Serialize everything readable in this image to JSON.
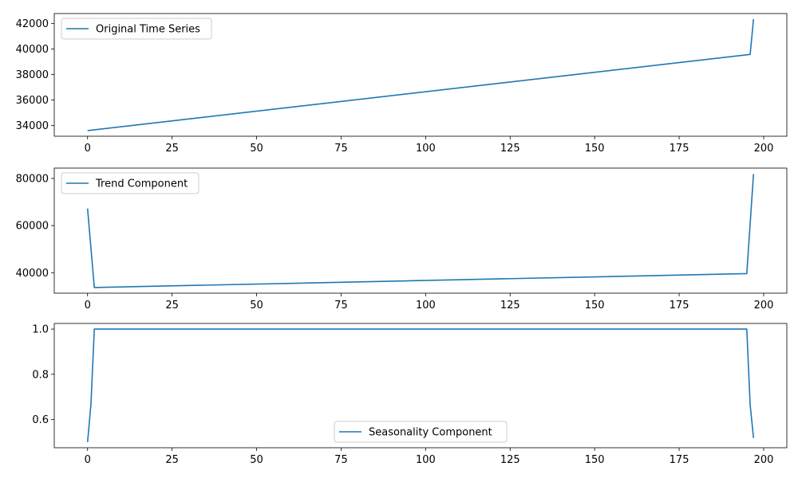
{
  "chart_data": [
    {
      "type": "line",
      "title": "",
      "xlabel": "",
      "ylabel": "",
      "xlim": [
        -9.85,
        206.85
      ],
      "ylim": [
        33160,
        42790
      ],
      "x_ticks": [
        0,
        25,
        50,
        75,
        100,
        125,
        150,
        175,
        200
      ],
      "x_tick_labels": [
        "0",
        "25",
        "50",
        "75",
        "100",
        "125",
        "150",
        "175",
        "200"
      ],
      "y_ticks": [
        34000,
        36000,
        38000,
        40000,
        42000
      ],
      "y_tick_labels": [
        "34000",
        "36000",
        "38000",
        "40000",
        "42000"
      ],
      "grid": false,
      "legend_position": "upper-left",
      "color": "#1f77b4",
      "series": [
        {
          "name": "Original Time Series",
          "x": [
            0,
            196,
            197
          ],
          "y": [
            33600,
            39580,
            42350
          ]
        }
      ]
    },
    {
      "type": "line",
      "title": "",
      "xlabel": "",
      "ylabel": "",
      "xlim": [
        -9.85,
        206.85
      ],
      "ylim": [
        31300,
        84400
      ],
      "x_ticks": [
        0,
        25,
        50,
        75,
        100,
        125,
        150,
        175,
        200
      ],
      "x_tick_labels": [
        "0",
        "25",
        "50",
        "75",
        "100",
        "125",
        "150",
        "175",
        "200"
      ],
      "y_ticks": [
        40000,
        60000,
        80000
      ],
      "y_tick_labels": [
        "40000",
        "60000",
        "80000"
      ],
      "grid": false,
      "legend_position": "upper-left",
      "color": "#1f77b4",
      "series": [
        {
          "name": "Trend Component",
          "x": [
            0,
            2,
            195,
            197
          ],
          "y": [
            67200,
            33700,
            39600,
            81900
          ]
        }
      ]
    },
    {
      "type": "line",
      "title": "",
      "xlabel": "",
      "ylabel": "",
      "xlim": [
        -9.85,
        206.85
      ],
      "ylim": [
        0.475,
        1.025
      ],
      "x_ticks": [
        0,
        25,
        50,
        75,
        100,
        125,
        150,
        175,
        200
      ],
      "x_tick_labels": [
        "0",
        "25",
        "50",
        "75",
        "100",
        "125",
        "150",
        "175",
        "200"
      ],
      "y_ticks": [
        0.6,
        0.8,
        1.0
      ],
      "y_tick_labels": [
        "0.6",
        "0.8",
        "1.0"
      ],
      "grid": false,
      "legend_position": "lower-center",
      "color": "#1f77b4",
      "series": [
        {
          "name": "Seasonality Component",
          "x": [
            0,
            1,
            2,
            195,
            196,
            197
          ],
          "y": [
            0.5,
            0.667,
            1.0,
            1.0,
            0.665,
            0.518
          ]
        }
      ]
    }
  ]
}
